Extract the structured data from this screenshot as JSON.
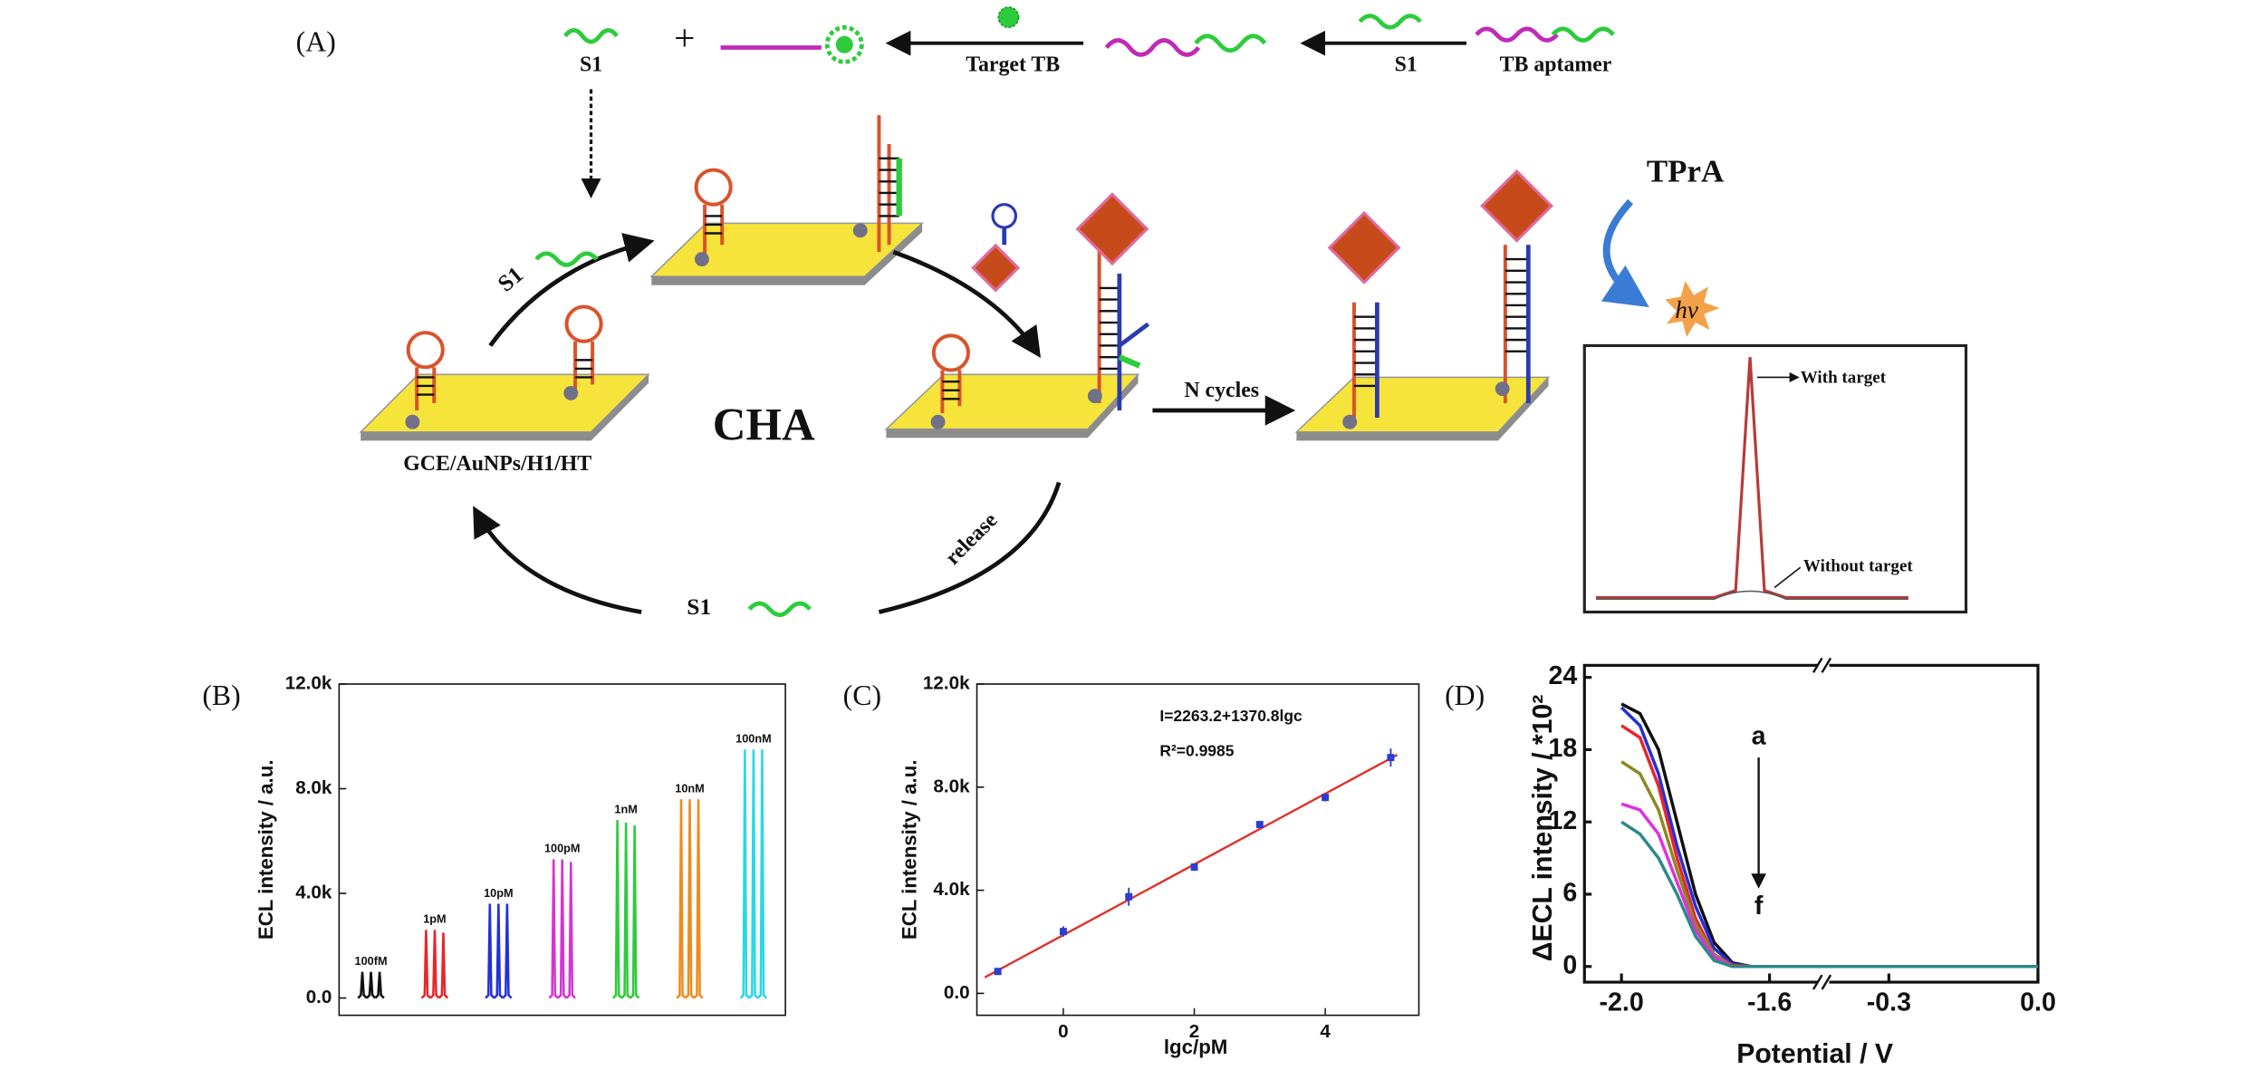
{
  "diagram": {
    "panel_label": "(A)",
    "top": {
      "s1_left": "S1",
      "plus": "+",
      "target_label": "Target TB",
      "s1_right": "S1",
      "aptamer_label": "TB aptamer"
    },
    "cycle": {
      "s1_in": "S1",
      "center": "CHA",
      "electrode": "GCE/AuNPs/H1/HT",
      "release": "release",
      "s1_out": "S1",
      "n_cycles": "N cycles"
    },
    "detection": {
      "reagent": "TPrA",
      "emission": "hv",
      "with_target": "With target",
      "without_target": "Without target"
    }
  },
  "chart_data": [
    {
      "type": "peaks",
      "panel_label": "(B)",
      "ylabel": "ECL intensity / a.u.",
      "categories": [
        "100fM",
        "1pM",
        "10pM",
        "100pM",
        "1nM",
        "10nM",
        "100nM"
      ],
      "colors": [
        "#111111",
        "#e8262a",
        "#2430d8",
        "#d633d6",
        "#2ccc3a",
        "#f08a1c",
        "#28d8e8"
      ],
      "values": [
        [
          1000,
          1000,
          1000
        ],
        [
          2600,
          2600,
          2500
        ],
        [
          3600,
          3600,
          3600
        ],
        [
          5300,
          5300,
          5200
        ],
        [
          6800,
          6700,
          6600
        ],
        [
          7600,
          7600,
          7600
        ],
        [
          9500,
          9500,
          9500
        ]
      ],
      "ylim": [
        -660,
        12000
      ],
      "yticks": [
        {
          "value": 0,
          "label": "0.0"
        },
        {
          "value": 4000,
          "label": "4.0k"
        },
        {
          "value": 8000,
          "label": "8.0k"
        },
        {
          "value": 12000,
          "label": "12.0k"
        }
      ]
    },
    {
      "type": "scatter",
      "panel_label": "(C)",
      "xlabel": "lgc/pM",
      "ylabel": "ECL intensity / a.u.",
      "x": [
        -1,
        0,
        1,
        2,
        3,
        4,
        5
      ],
      "values": [
        850,
        2400,
        3750,
        4900,
        6550,
        7600,
        9150
      ],
      "errors": [
        100,
        200,
        350,
        150,
        100,
        150,
        350
      ],
      "color": "#2a3fd0",
      "fit": {
        "x": [
          -1.2,
          5.1
        ],
        "y": [
          618,
          9254
        ],
        "color": "#e0302a"
      },
      "annotations": [
        "I=2263.2+1370.8lgc",
        "R²=0.9985"
      ],
      "xlim": [
        -1.32,
        5.43
      ],
      "xticks": [
        0,
        2,
        4
      ],
      "ylim": [
        -850,
        12000
      ],
      "yticks": [
        {
          "value": 0,
          "label": "0.0"
        },
        {
          "value": 4000,
          "label": "4.0k"
        },
        {
          "value": 8000,
          "label": "8.0k"
        },
        {
          "value": 12000,
          "label": "12.0k"
        }
      ]
    },
    {
      "type": "line",
      "panel_label": "(D)",
      "xlabel": "Potential / V",
      "ylabel": "ΔECL intensity / *10²",
      "x": [
        -2.0,
        -1.95,
        -1.9,
        -1.85,
        -1.8,
        -1.75,
        -1.7,
        -1.65,
        -1.6,
        -0.3,
        0.0
      ],
      "xlim_segments": [
        [
          -2.1,
          -1.47
        ],
        [
          -0.42,
          0.0
        ]
      ],
      "xticks": [
        {
          "value": -2.0,
          "label": "-2.0"
        },
        {
          "value": -1.6,
          "label": "-1.6"
        },
        {
          "value": -0.3,
          "label": "-0.3"
        },
        {
          "value": 0,
          "label": "0.0"
        }
      ],
      "ylim": [
        -1.3,
        25
      ],
      "yticks": [
        0,
        6,
        12,
        18,
        24
      ],
      "series": [
        {
          "color": "#111111",
          "values": [
            21.8,
            21,
            18,
            12,
            6,
            2,
            0.3,
            0,
            0,
            0,
            0
          ]
        },
        {
          "color": "#2430d8",
          "values": [
            21.5,
            20,
            16,
            10,
            5,
            1.5,
            0.2,
            0,
            0,
            0,
            0
          ]
        },
        {
          "color": "#e8262a",
          "values": [
            20,
            19,
            15,
            9,
            4,
            1,
            0.1,
            0,
            0,
            0,
            0
          ]
        },
        {
          "color": "#8a8a20",
          "values": [
            17,
            16,
            13,
            8,
            3.5,
            1,
            0,
            0,
            0,
            0,
            0
          ]
        },
        {
          "color": "#e030e0",
          "values": [
            13.5,
            13,
            11,
            7,
            3,
            0.8,
            0,
            0,
            0,
            0,
            0
          ]
        },
        {
          "color": "#2a8a8a",
          "values": [
            12,
            11,
            9,
            6,
            2.5,
            0.5,
            0,
            0,
            0,
            0,
            0
          ]
        }
      ],
      "annotations": [
        "a",
        "f"
      ]
    }
  ]
}
